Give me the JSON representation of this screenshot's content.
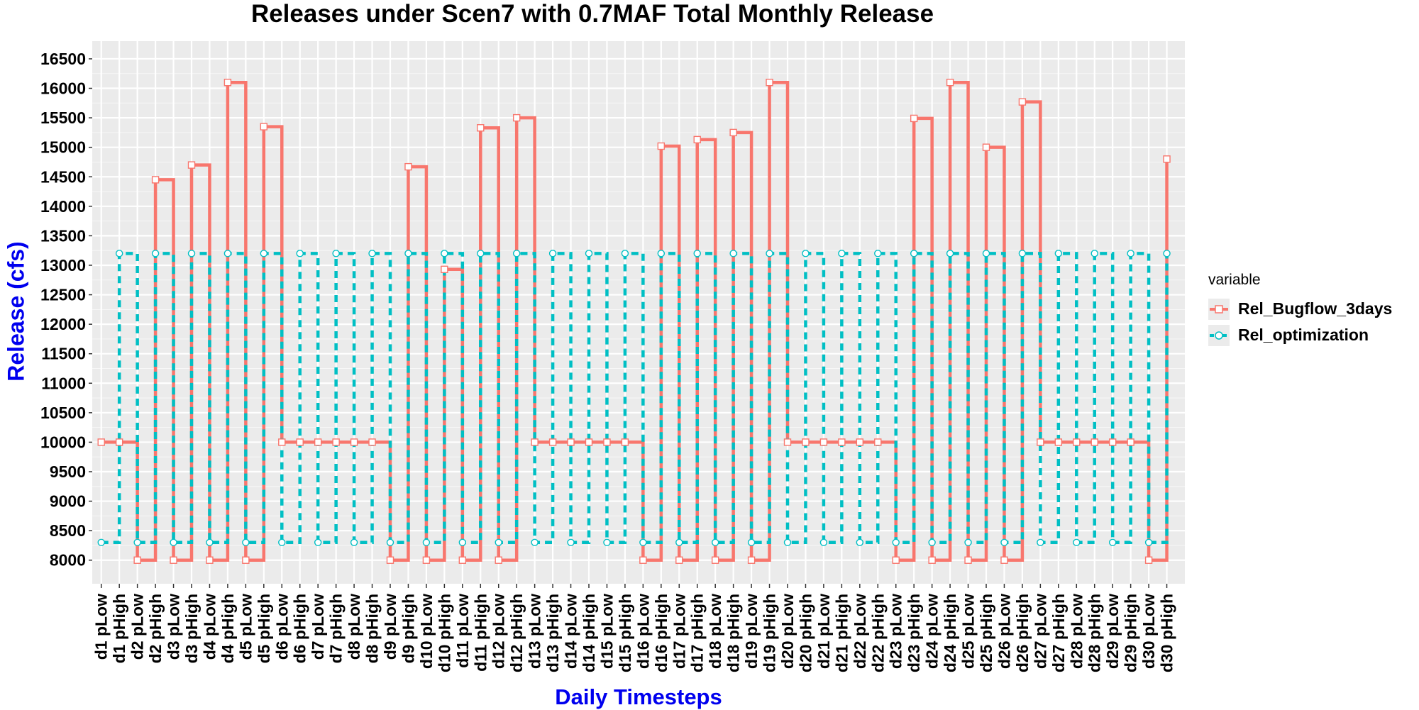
{
  "chart_data": {
    "type": "line",
    "title": "Releases under Scen7 with 0.7MAF Total Monthly Release",
    "xlabel": "Daily Timesteps",
    "ylabel": "Release (cfs)",
    "ylim": [
      7600,
      16500
    ],
    "yticks": [
      8000,
      8500,
      9000,
      9500,
      10000,
      10500,
      11000,
      11500,
      12000,
      12500,
      13000,
      13500,
      14000,
      14500,
      15000,
      15500,
      16000,
      16500
    ],
    "grid": true,
    "legend_title": "variable",
    "legend_position": "right",
    "categories": [
      "d1 pLow",
      "d1 pHigh",
      "d2 pLow",
      "d2 pHigh",
      "d3 pLow",
      "d3 pHigh",
      "d4 pLow",
      "d4 pHigh",
      "d5 pLow",
      "d5 pHigh",
      "d6 pLow",
      "d6 pHigh",
      "d7 pLow",
      "d7 pHigh",
      "d8 pLow",
      "d8 pHigh",
      "d9 pLow",
      "d9 pHigh",
      "d10 pLow",
      "d10 pHigh",
      "d11 pLow",
      "d11 pHigh",
      "d12 pLow",
      "d12 pHigh",
      "d13 pLow",
      "d13 pHigh",
      "d14 pLow",
      "d14 pHigh",
      "d15 pLow",
      "d15 pHigh",
      "d16 pLow",
      "d16 pHigh",
      "d17 pLow",
      "d17 pHigh",
      "d18 pLow",
      "d18 pHigh",
      "d19 pLow",
      "d19 pHigh",
      "d20 pLow",
      "d20 pHigh",
      "d21 pLow",
      "d21 pHigh",
      "d22 pLow",
      "d22 pHigh",
      "d23 pLow",
      "d23 pHigh",
      "d24 pLow",
      "d24 pHigh",
      "d25 pLow",
      "d25 pHigh",
      "d26 pLow",
      "d26 pHigh",
      "d27 pLow",
      "d27 pHigh",
      "d28 pLow",
      "d28 pHigh",
      "d29 pLow",
      "d29 pHigh",
      "d30 pLow",
      "d30 pHigh"
    ],
    "series": [
      {
        "name": "Rel_Bugflow_3days",
        "color": "#f8766d",
        "line": "solid",
        "marker": "square",
        "values": [
          10000,
          10000,
          8000,
          14450,
          8000,
          14700,
          8000,
          16100,
          8000,
          15350,
          10000,
          10000,
          10000,
          10000,
          10000,
          10000,
          8000,
          14670,
          8000,
          12930,
          8000,
          15330,
          8000,
          15500,
          10000,
          10000,
          10000,
          10000,
          10000,
          10000,
          8000,
          15020,
          8000,
          15130,
          8000,
          15250,
          8000,
          16100,
          10000,
          10000,
          10000,
          10000,
          10000,
          10000,
          8000,
          15490,
          8000,
          16100,
          8000,
          15000,
          8000,
          15770,
          10000,
          10000,
          10000,
          10000,
          10000,
          10000,
          8000,
          14800
        ]
      },
      {
        "name": "Rel_optimization",
        "color": "#00bfc4",
        "line": "dashed",
        "marker": "circle",
        "values": [
          8300,
          13200,
          8300,
          13200,
          8300,
          13200,
          8300,
          13200,
          8300,
          13200,
          8300,
          13200,
          8300,
          13200,
          8300,
          13200,
          8300,
          13200,
          8300,
          13200,
          8300,
          13200,
          8300,
          13200,
          8300,
          13200,
          8300,
          13200,
          8300,
          13200,
          8300,
          13200,
          8300,
          13200,
          8300,
          13200,
          8300,
          13200,
          8300,
          13200,
          8300,
          13200,
          8300,
          13200,
          8300,
          13200,
          8300,
          13200,
          8300,
          13200,
          8300,
          13200,
          8300,
          13200,
          8300,
          13200,
          8300,
          13200,
          8300,
          13200
        ]
      }
    ]
  }
}
